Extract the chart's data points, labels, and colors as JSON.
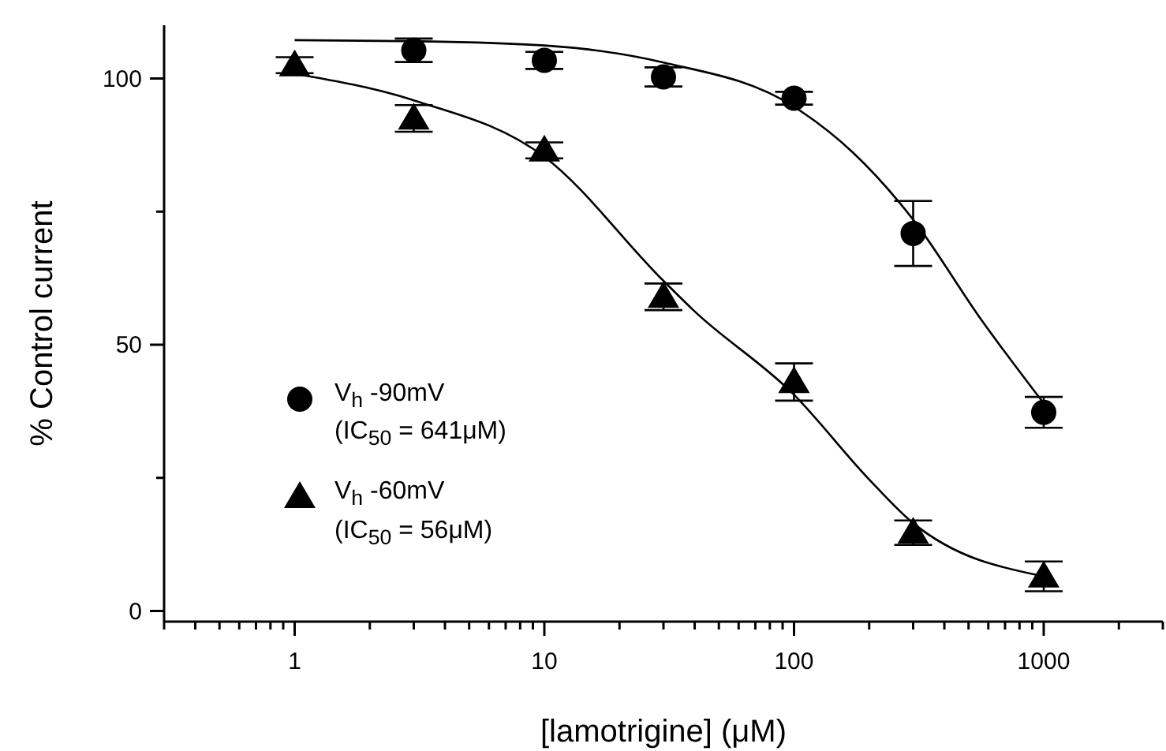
{
  "chart_data": {
    "type": "scatter",
    "xlabel": "[lamotrigine] (μM)",
    "ylabel": "% Control current",
    "log": "x",
    "xlim": [
      0.3,
      3000
    ],
    "ylim": [
      -2,
      110
    ],
    "xticks": [
      {
        "value": 0.3,
        "label": null
      },
      {
        "value": 0.4,
        "label": null
      },
      {
        "value": 0.5,
        "label": null
      },
      {
        "value": 0.6,
        "label": null
      },
      {
        "value": 0.7,
        "label": null
      },
      {
        "value": 0.8,
        "label": null
      },
      {
        "value": 0.9,
        "label": null
      },
      1,
      {
        "value": 2,
        "label": null
      },
      {
        "value": 3,
        "label": null
      },
      {
        "value": 4,
        "label": null
      },
      {
        "value": 5,
        "label": null
      },
      {
        "value": 6,
        "label": null
      },
      {
        "value": 7,
        "label": null
      },
      {
        "value": 8,
        "label": null
      },
      {
        "value": 9,
        "label": null
      },
      10,
      {
        "value": 20,
        "label": null
      },
      {
        "value": 30,
        "label": null
      },
      {
        "value": 40,
        "label": null
      },
      {
        "value": 50,
        "label": null
      },
      {
        "value": 60,
        "label": null
      },
      {
        "value": 70,
        "label": null
      },
      {
        "value": 80,
        "label": null
      },
      {
        "value": 90,
        "label": null
      },
      100,
      {
        "value": 200,
        "label": null
      },
      {
        "value": 300,
        "label": null
      },
      {
        "value": 400,
        "label": null
      },
      {
        "value": 500,
        "label": null
      },
      {
        "value": 600,
        "label": null
      },
      {
        "value": 700,
        "label": null
      },
      {
        "value": 800,
        "label": null
      },
      {
        "value": 900,
        "label": null
      },
      1000,
      {
        "value": 2000,
        "label": null
      },
      {
        "value": 3000,
        "label": null
      }
    ],
    "yticks": [
      0,
      {
        "value": 25,
        "label": null
      },
      50,
      {
        "value": 75,
        "label": null
      },
      100
    ],
    "grid": false,
    "legend": "bottom left",
    "series": [
      {
        "name": "V$_{h}$ -90mV\n(IC$_{50}$ = 641μM)",
        "color": "#000000",
        "marker": "circle",
        "x": [
          3,
          10,
          30,
          100,
          300,
          1000
        ],
        "values": [
          105.3,
          103.4,
          100.3,
          96.3,
          70.9,
          37.3
        ],
        "errors": [
          2.2,
          1.6,
          1.8,
          1.2,
          6.1,
          2.9
        ]
      },
      {
        "name": "V$_{h}$ -60mV\n(IC$_{50}$ = 56μM)",
        "color": "#000000",
        "marker": "triangle",
        "x": [
          1,
          3,
          10,
          30,
          100,
          300,
          1000
        ],
        "values": [
          102.5,
          92.5,
          86.5,
          59,
          43,
          14.7,
          6.5
        ],
        "errors": [
          1.5,
          2.5,
          1.5,
          2.5,
          3.5,
          2.3,
          2.8
        ]
      },
      {
        "type": "line",
        "color": "#000000",
        "marker": "none",
        "x": [
          1,
          3,
          10,
          30,
          100,
          173,
          300,
          562,
          1000
        ],
        "values": [
          107.2,
          107,
          106.2,
          103,
          94.7,
          86,
          73.5,
          54.7,
          39
        ]
      },
      {
        "type": "line",
        "color": "#000000",
        "marker": "none",
        "x": [
          1,
          3,
          10,
          30,
          39.5,
          100,
          200,
          300,
          1000
        ],
        "values": [
          100.9,
          95.9,
          85.3,
          62,
          56.5,
          40.6,
          24.7,
          16.5,
          6.5
        ]
      }
    ]
  }
}
